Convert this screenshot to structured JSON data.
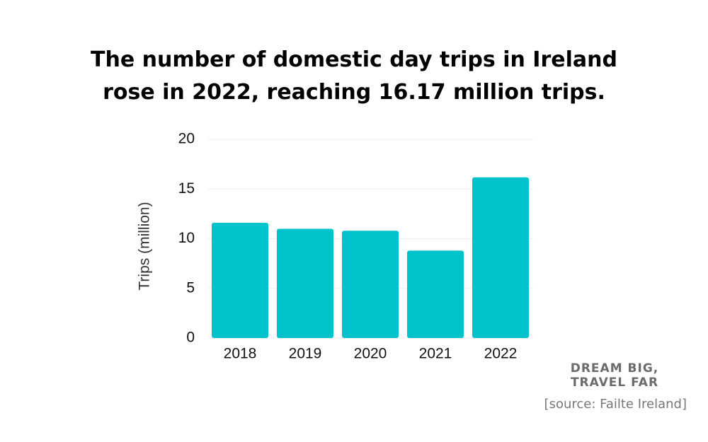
{
  "chart_data": {
    "type": "bar",
    "title": "The number of domestic day trips in Ireland rose in 2022, reaching 16.17 million trips.",
    "y_label": "Trips (million)",
    "categories": [
      "2018",
      "2019",
      "2020",
      "2021",
      "2022"
    ],
    "values": [
      11.6,
      11.0,
      10.8,
      8.8,
      16.17
    ],
    "color": "#00c2cb",
    "ylim": [
      0,
      20
    ],
    "yticks": [
      0,
      5,
      10,
      15,
      20
    ],
    "grid": true,
    "branding": [
      "DREAM BIG,",
      "TRAVEL FAR"
    ],
    "source": "[source: Failte Ireland]"
  }
}
